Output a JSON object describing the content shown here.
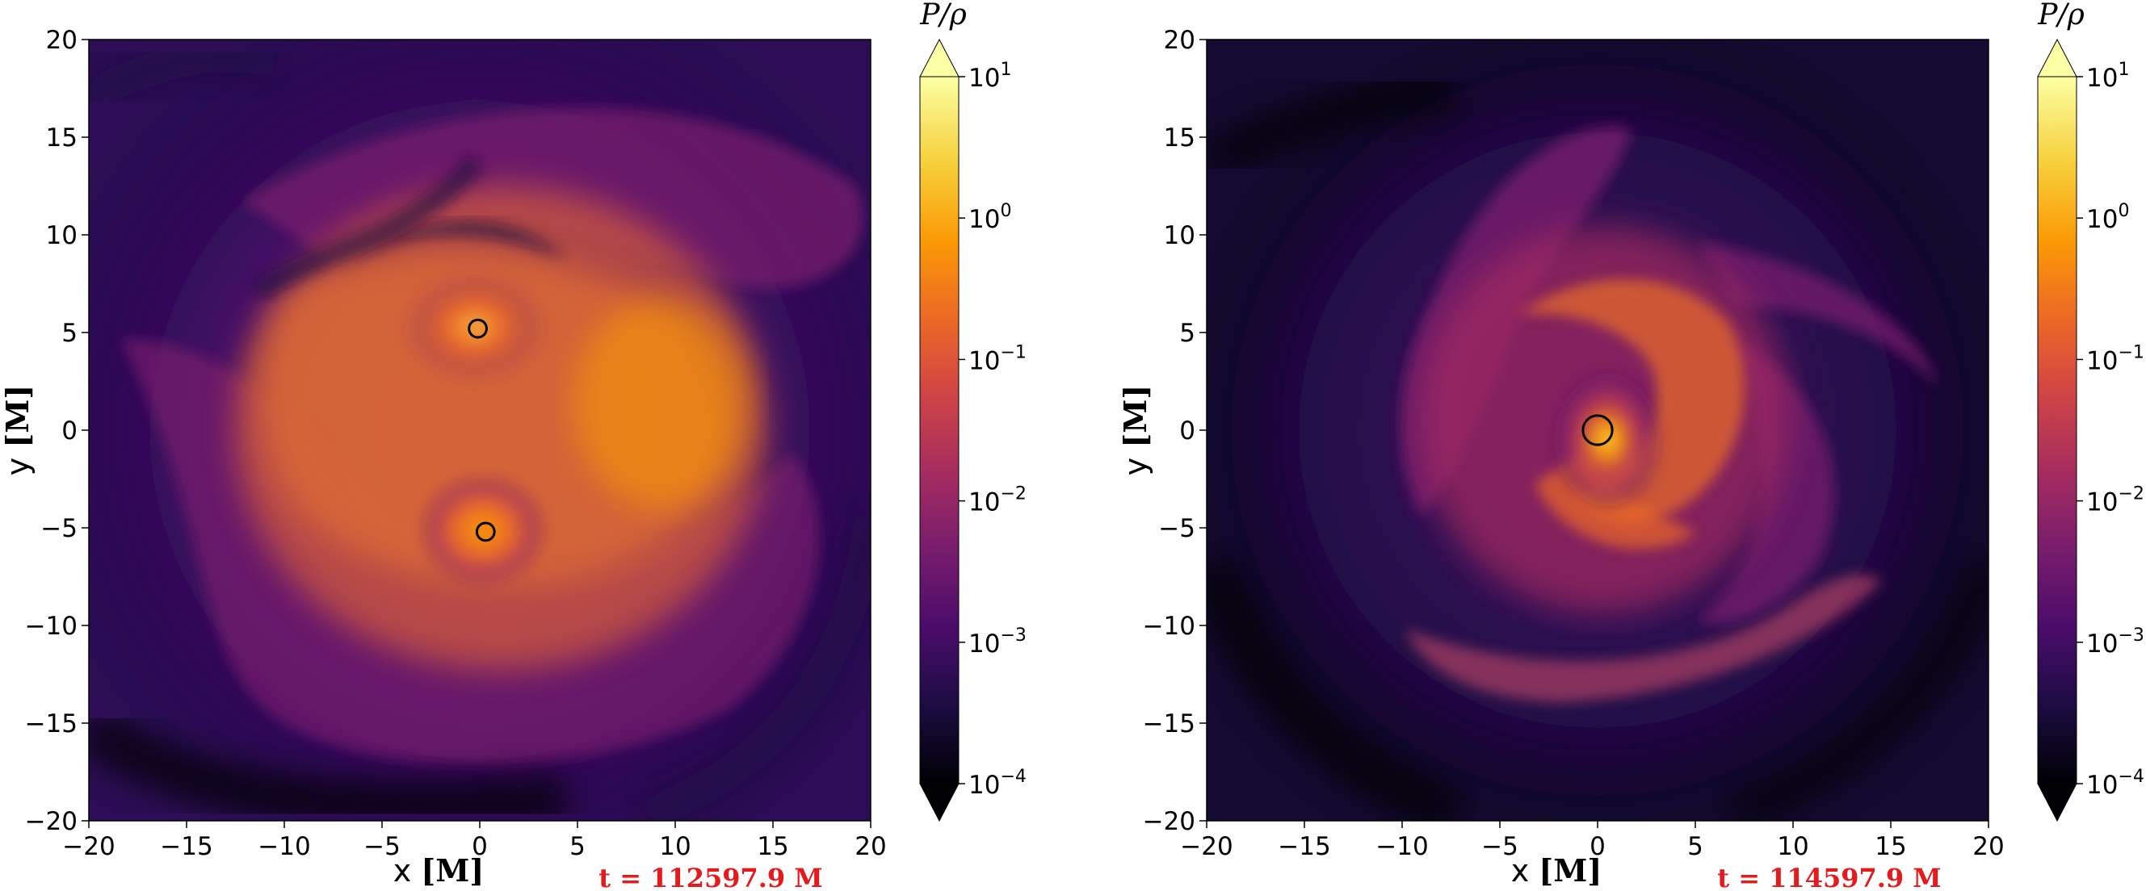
{
  "chart_data": [
    {
      "type": "heatmap",
      "title": "",
      "xlabel": "x",
      "xlabel_unit": "[M]",
      "ylabel": "y",
      "ylabel_unit": "[M]",
      "xlim": [
        -20,
        20
      ],
      "ylim": [
        -20,
        20
      ],
      "xticks": [
        -20,
        -15,
        -10,
        -5,
        0,
        5,
        10,
        15,
        20
      ],
      "yticks": [
        -20,
        -15,
        -10,
        -5,
        0,
        5,
        10,
        15,
        20
      ],
      "xtick_labels": [
        "−20",
        "−15",
        "−10",
        "−5",
        "0",
        "5",
        "10",
        "15",
        "20"
      ],
      "ytick_labels": [
        "−20",
        "−15",
        "−10",
        "−5",
        "0",
        "5",
        "10",
        "15",
        "20"
      ],
      "annotation": "t = 112597.9 M",
      "colorbar": {
        "label": "P/ρ",
        "scale": "log",
        "range": [
          0.0001,
          10
        ],
        "colormap": "inferno",
        "extend": "both",
        "tick_bases": [
          "10",
          "10",
          "10",
          "10",
          "10",
          "10"
        ],
        "tick_exps": [
          "1",
          "0",
          "−1",
          "−2",
          "−3",
          "−4"
        ]
      },
      "markers": [
        {
          "shape": "circle",
          "x": -0.1,
          "y": 5.2,
          "radius": 0.45
        },
        {
          "shape": "circle",
          "x": 0.3,
          "y": -5.2,
          "radius": 0.45
        }
      ]
    },
    {
      "type": "heatmap",
      "title": "",
      "xlabel": "x",
      "xlabel_unit": "[M]",
      "ylabel": "y",
      "ylabel_unit": "[M]",
      "xlim": [
        -20,
        20
      ],
      "ylim": [
        -20,
        20
      ],
      "xticks": [
        -20,
        -15,
        -10,
        -5,
        0,
        5,
        10,
        15,
        20
      ],
      "yticks": [
        -20,
        -15,
        -10,
        -5,
        0,
        5,
        10,
        15,
        20
      ],
      "xtick_labels": [
        "−20",
        "−15",
        "−10",
        "−5",
        "0",
        "5",
        "10",
        "15",
        "20"
      ],
      "ytick_labels": [
        "−20",
        "−15",
        "−10",
        "−5",
        "0",
        "5",
        "10",
        "15",
        "20"
      ],
      "annotation": "t = 114597.9 M",
      "colorbar": {
        "label": "P/ρ",
        "scale": "log",
        "range": [
          0.0001,
          10
        ],
        "colormap": "inferno",
        "extend": "both",
        "tick_bases": [
          "10",
          "10",
          "10",
          "10",
          "10",
          "10"
        ],
        "tick_exps": [
          "1",
          "0",
          "−1",
          "−2",
          "−3",
          "−4"
        ]
      },
      "markers": [
        {
          "shape": "circle",
          "x": 0.0,
          "y": 0.0,
          "radius": 0.75
        }
      ]
    }
  ],
  "colors": {
    "annotation": "#e41a1c",
    "colormap_stops": [
      "#000004",
      "#1b0c41",
      "#4a0c6b",
      "#781c6d",
      "#a52c60",
      "#cf4446",
      "#ed6925",
      "#fb9b06",
      "#f7d13d",
      "#fcffa4"
    ]
  }
}
